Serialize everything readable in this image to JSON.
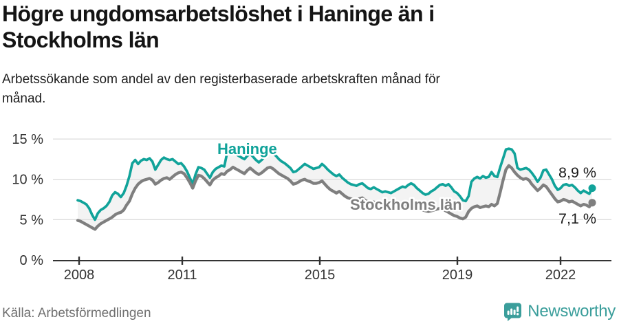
{
  "header": {
    "title_lines": [
      "Högre ungdomsarbetslöshet i Haninge än i",
      "Stockholms län"
    ],
    "subtitle_lines": [
      "Arbetssökande som andel av den registerbaserade arbetskraften månad för",
      "månad."
    ]
  },
  "footer": {
    "source": "Källa: Arbetsförmedlingen",
    "brand_name": "Newsworthy",
    "brand_color": "#3b9e9b"
  },
  "chart_data": {
    "type": "line",
    "frequency": "monthly",
    "x_start": {
      "year": 2008,
      "month": 1
    },
    "x_end": {
      "year": 2022,
      "month": 12
    },
    "x_tick_years": [
      2008,
      2011,
      2015,
      2019,
      2022
    ],
    "y_ticks": [
      {
        "label": "0 %",
        "value": 0
      },
      {
        "label": "5 %",
        "value": 5
      },
      {
        "label": "10 %",
        "value": 10
      },
      {
        "label": "15 %",
        "value": 15
      }
    ],
    "ylim": [
      0,
      15.8
    ],
    "grid": true,
    "fill_between": "#f3f3f3",
    "axis_color": "#333333",
    "grid_color": "#dcdcdc",
    "series": [
      {
        "id": "haninge",
        "name": "Haninge",
        "color": "#11a39a",
        "end_label": "8,9 %",
        "end_value": 8.9,
        "values": [
          7.4,
          7.3,
          7.1,
          6.9,
          6.4,
          5.6,
          5.0,
          5.8,
          6.2,
          6.4,
          6.7,
          7.2,
          8.0,
          8.4,
          8.2,
          7.8,
          8.3,
          9.2,
          10.4,
          12.0,
          12.4,
          11.9,
          12.3,
          12.5,
          12.4,
          12.6,
          12.2,
          11.2,
          11.8,
          12.4,
          12.7,
          12.5,
          12.4,
          12.5,
          12.2,
          11.9,
          12.0,
          11.6,
          11.0,
          10.2,
          9.4,
          10.6,
          11.5,
          11.4,
          11.2,
          10.7,
          10.2,
          10.9,
          11.3,
          11.5,
          11.7,
          11.6,
          13.3,
          13.1,
          13.4,
          13.2,
          12.9,
          12.7,
          12.5,
          12.9,
          13.2,
          12.8,
          12.4,
          12.1,
          12.4,
          12.8,
          13.1,
          13.4,
          13.2,
          12.9,
          12.5,
          12.2,
          12.0,
          11.7,
          11.4,
          10.9,
          11.0,
          11.3,
          11.6,
          11.9,
          11.7,
          11.5,
          11.3,
          11.4,
          11.5,
          11.9,
          11.6,
          11.2,
          10.9,
          10.6,
          10.4,
          10.6,
          10.2,
          9.9,
          9.6,
          9.4,
          9.3,
          9.2,
          9.4,
          9.5,
          9.2,
          8.9,
          8.8,
          9.0,
          8.8,
          8.6,
          8.4,
          8.5,
          8.4,
          8.3,
          8.5,
          8.7,
          8.9,
          9.1,
          9.0,
          9.3,
          9.5,
          9.3,
          8.9,
          8.6,
          8.3,
          8.1,
          8.2,
          8.5,
          8.7,
          9.0,
          9.3,
          9.4,
          9.2,
          9.4,
          9.0,
          8.5,
          8.3,
          7.9,
          7.4,
          7.3,
          7.9,
          9.7,
          10.1,
          10.3,
          10.1,
          10.4,
          10.2,
          10.3,
          10.9,
          10.4,
          10.3,
          11.5,
          12.6,
          13.7,
          13.8,
          13.7,
          13.2,
          11.4,
          11.2,
          11.3,
          11.4,
          11.2,
          10.8,
          10.3,
          9.7,
          10.2,
          11.1,
          11.2,
          10.6,
          10.0,
          9.2,
          8.7,
          8.9,
          9.3,
          9.4,
          9.2,
          9.3,
          9.0,
          8.6,
          8.3,
          8.6,
          8.4,
          8.2,
          8.9
        ]
      },
      {
        "id": "stockholms-lan",
        "name": "Stockholms län",
        "color": "#7f7f7f",
        "end_label": "7,1 %",
        "end_value": 7.1,
        "values": [
          4.9,
          4.8,
          4.6,
          4.4,
          4.2,
          4.0,
          3.8,
          4.2,
          4.5,
          4.7,
          4.9,
          5.1,
          5.3,
          5.6,
          5.8,
          5.9,
          6.2,
          6.8,
          7.3,
          8.2,
          8.9,
          9.4,
          9.7,
          9.9,
          10.0,
          10.1,
          9.9,
          9.4,
          9.6,
          9.9,
          10.1,
          10.2,
          10.0,
          10.3,
          10.6,
          10.8,
          10.9,
          10.7,
          10.2,
          9.6,
          8.9,
          9.8,
          10.5,
          10.4,
          10.1,
          9.7,
          9.3,
          9.9,
          10.2,
          10.4,
          10.7,
          10.6,
          11.0,
          11.2,
          11.5,
          11.3,
          11.1,
          10.9,
          10.7,
          11.1,
          11.4,
          11.1,
          10.8,
          10.6,
          10.8,
          11.1,
          11.4,
          11.5,
          11.3,
          11.0,
          10.7,
          10.5,
          10.3,
          10.1,
          9.8,
          9.4,
          9.5,
          9.7,
          9.9,
          10.0,
          9.8,
          9.7,
          9.5,
          9.5,
          9.6,
          9.8,
          9.4,
          9.0,
          8.7,
          8.5,
          8.3,
          8.5,
          8.2,
          7.9,
          7.7,
          7.6,
          7.5,
          7.4,
          7.6,
          7.7,
          7.4,
          7.2,
          7.0,
          7.2,
          7.0,
          6.8,
          6.6,
          6.5,
          6.4,
          6.3,
          6.4,
          6.6,
          6.7,
          6.9,
          6.8,
          7.0,
          7.1,
          6.9,
          6.6,
          6.4,
          6.2,
          6.1,
          6.0,
          6.1,
          6.2,
          6.3,
          6.4,
          6.3,
          6.1,
          5.9,
          5.7,
          5.5,
          5.4,
          5.2,
          5.1,
          5.3,
          6.0,
          6.4,
          6.6,
          6.7,
          6.5,
          6.6,
          6.7,
          6.6,
          6.9,
          6.7,
          7.0,
          8.4,
          9.9,
          11.2,
          11.7,
          11.4,
          10.9,
          10.5,
          10.2,
          10.0,
          10.1,
          9.9,
          9.4,
          9.0,
          8.6,
          8.9,
          9.3,
          9.1,
          8.6,
          8.1,
          7.6,
          7.2,
          7.3,
          7.5,
          7.4,
          7.2,
          7.3,
          7.1,
          6.9,
          6.7,
          6.9,
          6.8,
          6.6,
          7.1
        ]
      }
    ]
  }
}
